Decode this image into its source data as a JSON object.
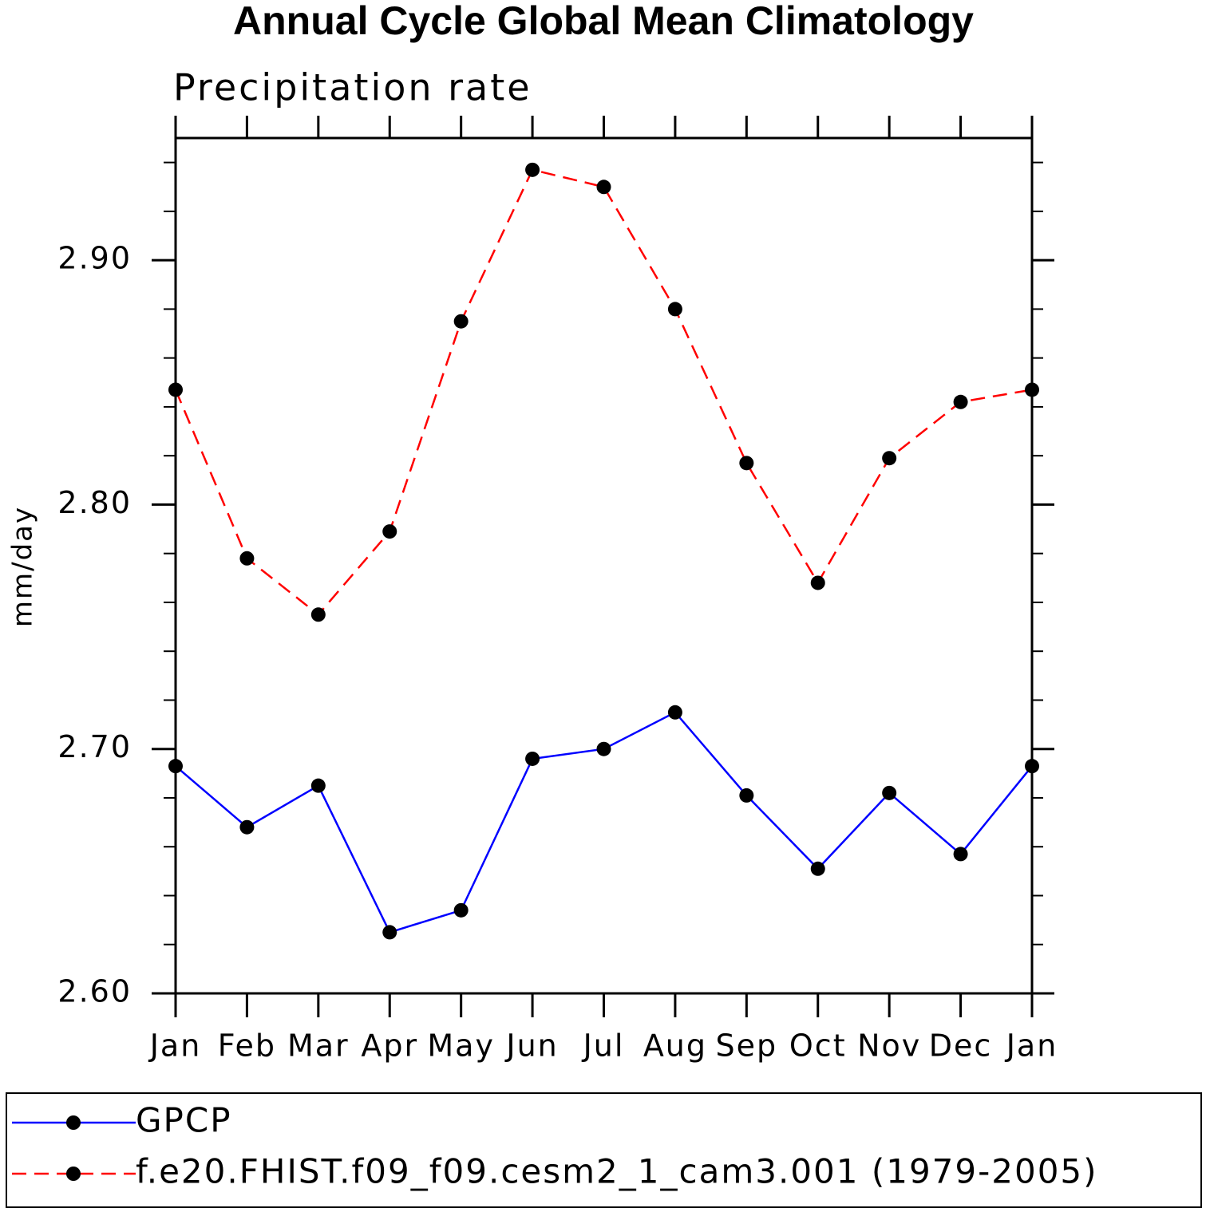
{
  "chart_data": {
    "type": "line",
    "title": "Annual Cycle Global Mean Climatology",
    "subtitle": "Precipitation rate",
    "y_label": "mm/day",
    "categories": [
      "Jan",
      "Feb",
      "Mar",
      "Apr",
      "May",
      "Jun",
      "Jul",
      "Aug",
      "Sep",
      "Oct",
      "Nov",
      "Dec",
      "Jan"
    ],
    "series": [
      {
        "name": "GPCP",
        "color": "#0000ff",
        "dash": "solid",
        "values": [
          2.693,
          2.668,
          2.685,
          2.625,
          2.634,
          2.696,
          2.7,
          2.715,
          2.681,
          2.651,
          2.682,
          2.657,
          2.693
        ]
      },
      {
        "name": "f.e20.FHIST.f09_f09.cesm2_1_cam3.001 (1979-2005)",
        "color": "#ff0000",
        "dash": "dashed",
        "values": [
          2.847,
          2.778,
          2.755,
          2.789,
          2.875,
          2.937,
          2.93,
          2.88,
          2.817,
          2.768,
          2.819,
          2.842,
          2.847
        ]
      }
    ],
    "ylim": [
      2.6,
      2.95
    ],
    "yticks": [
      {
        "value": 2.6,
        "label": "2.60"
      },
      {
        "value": 2.7,
        "label": "2.70"
      },
      {
        "value": 2.8,
        "label": "2.80"
      },
      {
        "value": 2.9,
        "label": "2.90"
      }
    ],
    "yminorticks": [
      2.62,
      2.64,
      2.66,
      2.68,
      2.72,
      2.74,
      2.76,
      2.78,
      2.82,
      2.84,
      2.86,
      2.88,
      2.92,
      2.94
    ],
    "grid": false,
    "legend": "bottom"
  }
}
